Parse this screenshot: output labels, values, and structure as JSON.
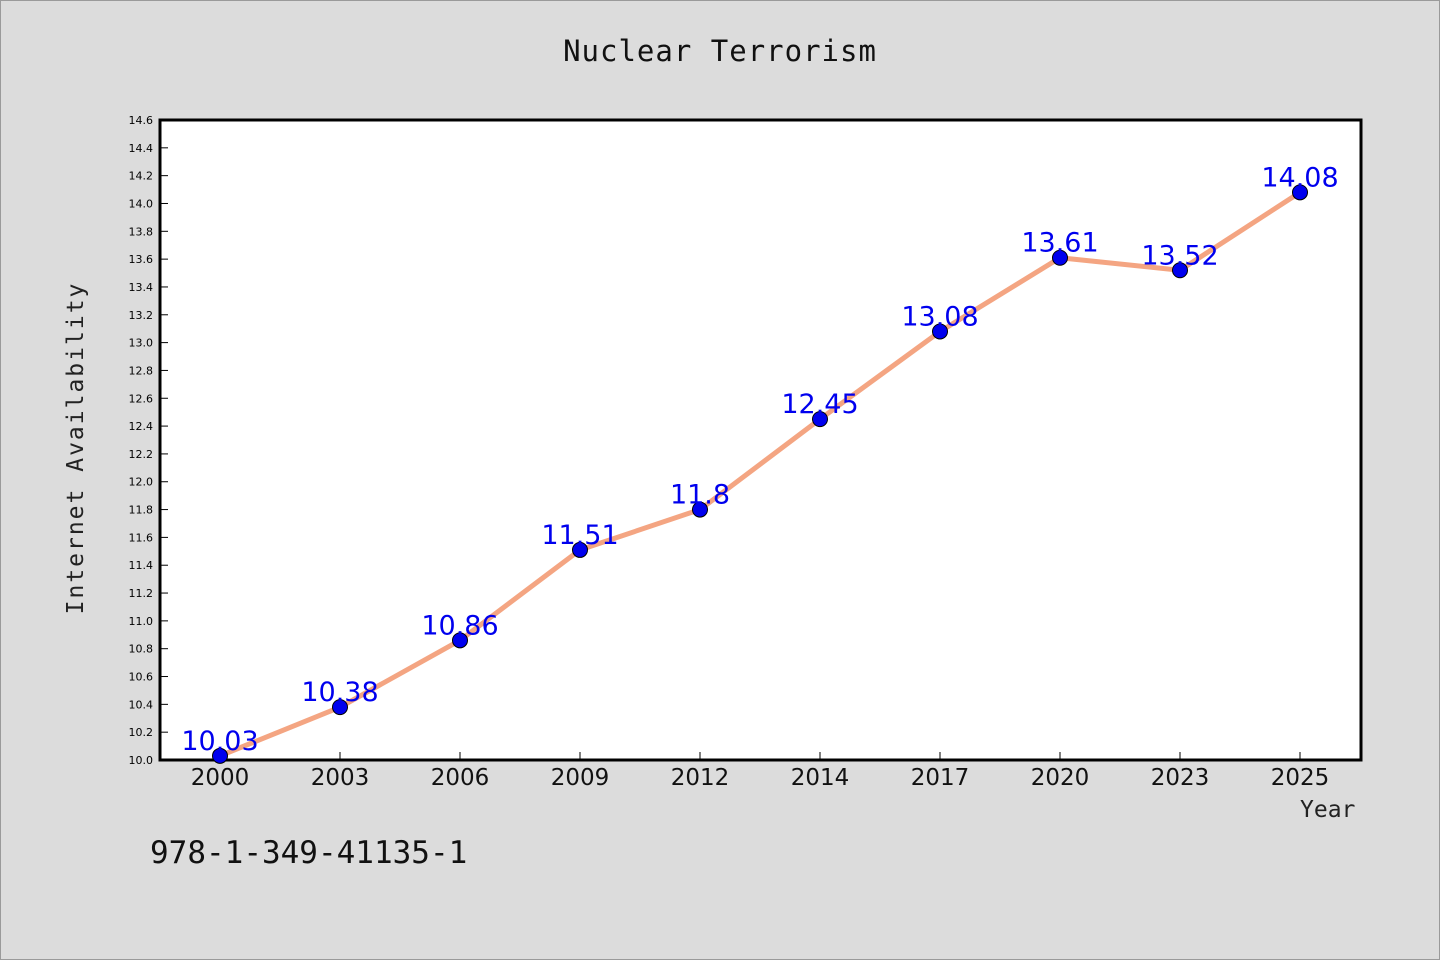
{
  "chart_data": {
    "type": "line",
    "title": "Nuclear Terrorism",
    "xlabel": "Year",
    "ylabel": "Internet Availability",
    "categories": [
      "2000",
      "2003",
      "2006",
      "2009",
      "2012",
      "2014",
      "2017",
      "2020",
      "2023",
      "2025"
    ],
    "series": [
      {
        "values": [
          10.03,
          10.38,
          10.86,
          11.51,
          11.8,
          12.45,
          13.08,
          13.61,
          13.52,
          14.08
        ],
        "labels": [
          "10.03",
          "10.38",
          "10.86",
          "11.51",
          "11.8",
          "12.45",
          "13.08",
          "13.61",
          "13.52",
          "14.08"
        ],
        "line_color": "#f4a582",
        "marker_color": "#0000ee",
        "label_color": "#0000ee"
      }
    ],
    "ylim": [
      10.0,
      14.6
    ],
    "yticks": [
      "10.0",
      "10.2",
      "10.4",
      "10.6",
      "10.8",
      "11.0",
      "11.2",
      "11.4",
      "11.6",
      "11.8",
      "12.0",
      "12.2",
      "12.4",
      "12.6",
      "12.8",
      "13.0",
      "13.2",
      "13.4",
      "13.6",
      "13.8",
      "14.0",
      "14.2",
      "14.4",
      "14.6"
    ],
    "grid": false,
    "legend": "none"
  },
  "footer": {
    "isbn": "978-1-349-41135-1"
  }
}
